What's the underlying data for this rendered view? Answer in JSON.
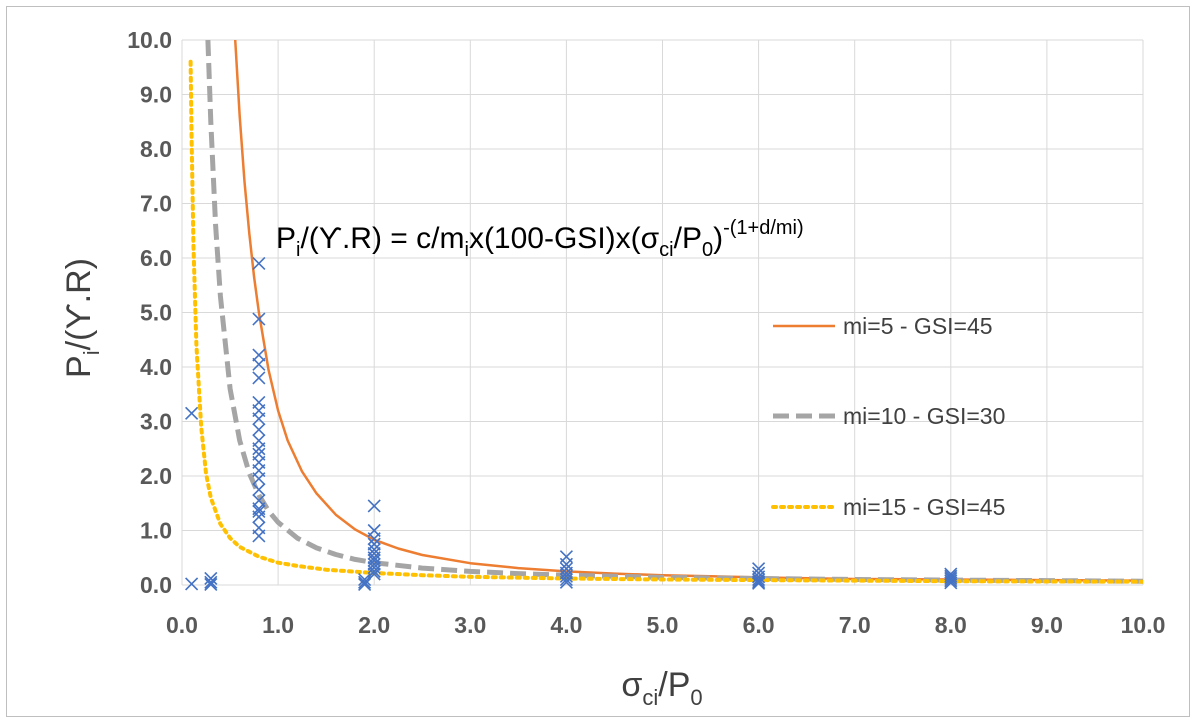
{
  "chart_data": {
    "type": "scatter",
    "title": "",
    "xlabel": {
      "main": "σ",
      "sub1": "ci",
      "mid": "/P",
      "sub2": "0"
    },
    "ylabel": {
      "main": "P",
      "sub1": "i",
      "rest": "/(ϒ.R)"
    },
    "annotation": {
      "p1": "P",
      "s1": "i",
      "p2": "/(ϒ.R) = c/m",
      "s2": "i",
      "p3": "x(100-GSI)x(σ",
      "s3": "ci",
      "p4": "/P",
      "s4": "0",
      "p5": ")",
      "sup": "-(1+d/mi)"
    },
    "xlim": [
      0,
      10
    ],
    "ylim": [
      0,
      10
    ],
    "x_ticks": [
      "0.0",
      "1.0",
      "2.0",
      "3.0",
      "4.0",
      "5.0",
      "6.0",
      "7.0",
      "8.0",
      "9.0",
      "10.0"
    ],
    "y_ticks": [
      "0.0",
      "1.0",
      "2.0",
      "3.0",
      "4.0",
      "5.0",
      "6.0",
      "7.0",
      "8.0",
      "9.0",
      "10.0"
    ],
    "grid": true,
    "legend_position": "right",
    "series": [
      {
        "name": "mi=5 - GSI=45",
        "kind": "line",
        "style": "solid",
        "color": "#ED7D31",
        "x": [
          0.55,
          0.6,
          0.65,
          0.7,
          0.75,
          0.8,
          0.9,
          1.0,
          1.1,
          1.25,
          1.4,
          1.6,
          1.8,
          2.0,
          2.25,
          2.5,
          3.0,
          3.5,
          4.0,
          4.5,
          5.0,
          5.5,
          6.0,
          7.0,
          8.0,
          9.0,
          10.0
        ],
        "y": [
          10.1,
          8.6,
          7.4,
          6.45,
          5.65,
          5.0,
          3.95,
          3.2,
          2.65,
          2.08,
          1.68,
          1.29,
          1.02,
          0.83,
          0.67,
          0.55,
          0.4,
          0.31,
          0.25,
          0.21,
          0.18,
          0.16,
          0.14,
          0.11,
          0.1,
          0.09,
          0.08
        ]
      },
      {
        "name": "mi=10 - GSI=30",
        "kind": "line",
        "style": "dashed",
        "color": "#A5A5A5",
        "x": [
          0.27,
          0.3,
          0.35,
          0.4,
          0.5,
          0.6,
          0.7,
          0.8,
          0.9,
          1.0,
          1.2,
          1.4,
          1.6,
          1.8,
          2.0,
          2.5,
          3.0,
          3.5,
          4.0,
          5.0,
          6.0,
          7.0,
          8.0,
          9.0,
          10.0
        ],
        "y": [
          10.0,
          8.5,
          6.6,
          5.3,
          3.6,
          2.65,
          2.05,
          1.65,
          1.36,
          1.15,
          0.86,
          0.68,
          0.56,
          0.47,
          0.41,
          0.31,
          0.25,
          0.21,
          0.18,
          0.14,
          0.12,
          0.1,
          0.09,
          0.08,
          0.07
        ]
      },
      {
        "name": "mi=15 - GSI=45",
        "kind": "line",
        "style": "dotted",
        "color": "#FFC000",
        "x": [
          0.09,
          0.1,
          0.12,
          0.15,
          0.2,
          0.25,
          0.3,
          0.4,
          0.5,
          0.6,
          0.8,
          1.0,
          1.2,
          1.5,
          2.0,
          2.5,
          3.0,
          4.0,
          5.0,
          6.0,
          7.0,
          8.0,
          9.0,
          10.0
        ],
        "y": [
          9.6,
          8.2,
          6.2,
          4.4,
          2.9,
          2.05,
          1.6,
          1.12,
          0.86,
          0.7,
          0.52,
          0.41,
          0.35,
          0.28,
          0.22,
          0.18,
          0.15,
          0.12,
          0.1,
          0.09,
          0.08,
          0.07,
          0.065,
          0.06
        ]
      },
      {
        "name": "",
        "kind": "scatter",
        "marker": "x",
        "color": "#4472C4",
        "x": [
          0.1,
          0.1,
          0.3,
          0.3,
          0.3,
          0.8,
          0.8,
          0.8,
          0.8,
          0.8,
          0.8,
          0.8,
          0.8,
          0.8,
          0.8,
          0.8,
          0.8,
          0.8,
          0.8,
          0.8,
          0.8,
          0.8,
          0.8,
          0.8,
          0.8,
          0.8,
          0.8,
          1.9,
          1.9,
          1.9,
          2.0,
          2.0,
          2.0,
          2.0,
          2.0,
          2.0,
          2.0,
          2.0,
          2.0,
          2.0,
          2.0,
          2.0,
          4.0,
          4.0,
          4.0,
          4.0,
          4.0,
          4.0,
          4.0,
          6.0,
          6.0,
          6.0,
          6.0,
          6.0,
          6.0,
          8.0,
          8.0,
          8.0,
          8.0,
          8.0
        ],
        "y": [
          3.15,
          0.02,
          0.12,
          0.05,
          0.01,
          5.9,
          4.88,
          4.22,
          4.05,
          3.8,
          3.35,
          3.2,
          3.05,
          2.85,
          2.65,
          2.5,
          2.4,
          2.25,
          2.1,
          1.95,
          1.75,
          1.55,
          1.4,
          1.35,
          1.25,
          1.05,
          0.9,
          0.1,
          0.05,
          0.01,
          1.45,
          1.0,
          0.85,
          0.75,
          0.65,
          0.58,
          0.5,
          0.45,
          0.38,
          0.32,
          0.25,
          0.2,
          0.52,
          0.38,
          0.3,
          0.22,
          0.16,
          0.1,
          0.05,
          0.3,
          0.22,
          0.15,
          0.1,
          0.06,
          0.03,
          0.2,
          0.16,
          0.12,
          0.08,
          0.04
        ]
      }
    ]
  }
}
